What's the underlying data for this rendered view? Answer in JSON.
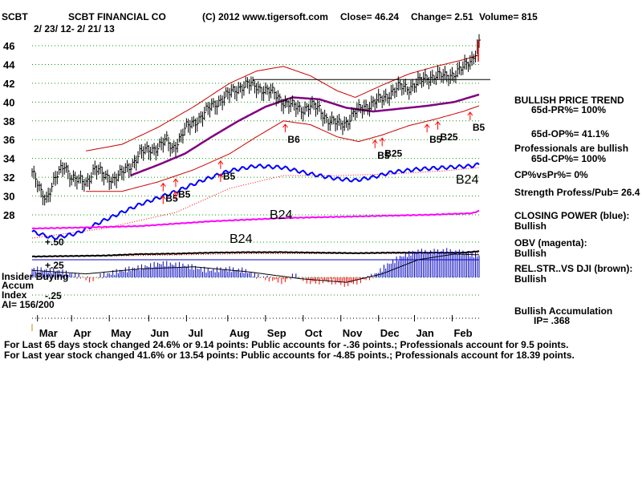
{
  "header": {
    "ticker": "SCBT",
    "company": "SCBT FINANCIAL CO",
    "copyright": "(C) 2012 www.tigersoft.com",
    "close": "Close=  46.24",
    "change": "Change= 2.51",
    "volume": "Volume= 815",
    "date_range": "2/ 23/ 12-  2/ 21/ 13"
  },
  "colors": {
    "price": "#000000",
    "bands": "#cc0000",
    "ma": "#800080",
    "closing_power": "#0000ff",
    "obv": "#ff00ff",
    "relstr": "#804000",
    "accum": "#0000c0",
    "signal": "#ff0000",
    "grid": "#00a000"
  },
  "chart_data": {
    "type": "line",
    "title": "SCBT FINANCIAL CO",
    "ylim": [
      28,
      46
    ],
    "y_ticks": [
      "46",
      "44",
      "42",
      "40",
      "38",
      "36",
      "34",
      "32",
      "30",
      "28"
    ],
    "months": [
      "Mar",
      "Apr",
      "May",
      "Jun",
      "Jul",
      "Aug",
      "Sep",
      "Oct",
      "Nov",
      "Dec",
      "Jan",
      "Feb"
    ],
    "month_index": [
      3,
      22,
      43,
      65,
      86,
      109,
      130,
      151,
      172,
      193,
      213,
      234
    ],
    "n_days": 250,
    "price_keys": [
      [
        0,
        32.5
      ],
      [
        5,
        30.2
      ],
      [
        8,
        29.8
      ],
      [
        12,
        31.5
      ],
      [
        18,
        33.2
      ],
      [
        22,
        32.0
      ],
      [
        26,
        31.5
      ],
      [
        30,
        31.3
      ],
      [
        35,
        33.0
      ],
      [
        40,
        32.0
      ],
      [
        45,
        31.8
      ],
      [
        50,
        32.3
      ],
      [
        55,
        33.2
      ],
      [
        60,
        34.5
      ],
      [
        65,
        34.8
      ],
      [
        70,
        35.2
      ],
      [
        75,
        35.8
      ],
      [
        78,
        35.0
      ],
      [
        82,
        36.0
      ],
      [
        86,
        37.2
      ],
      [
        90,
        37.8
      ],
      [
        95,
        38.5
      ],
      [
        100,
        39.5
      ],
      [
        105,
        40.2
      ],
      [
        110,
        40.8
      ],
      [
        115,
        41.5
      ],
      [
        120,
        41.8
      ],
      [
        125,
        41.6
      ],
      [
        130,
        41.2
      ],
      [
        135,
        40.8
      ],
      [
        140,
        40.0
      ],
      [
        145,
        39.5
      ],
      [
        150,
        39.2
      ],
      [
        155,
        39.5
      ],
      [
        160,
        39.2
      ],
      [
        165,
        38.0
      ],
      [
        170,
        37.6
      ],
      [
        175,
        37.8
      ],
      [
        180,
        38.8
      ],
      [
        185,
        39.5
      ],
      [
        190,
        39.8
      ],
      [
        195,
        40.3
      ],
      [
        200,
        41.0
      ],
      [
        205,
        41.5
      ],
      [
        210,
        41.5
      ],
      [
        215,
        42.0
      ],
      [
        220,
        42.5
      ],
      [
        225,
        42.8
      ],
      [
        230,
        42.6
      ],
      [
        235,
        43.0
      ],
      [
        240,
        43.5
      ],
      [
        245,
        44.5
      ],
      [
        249,
        46.24
      ]
    ],
    "ma65_keys": [
      [
        55,
        32.2
      ],
      [
        70,
        33.3
      ],
      [
        85,
        34.5
      ],
      [
        100,
        36.3
      ],
      [
        115,
        38.0
      ],
      [
        130,
        39.5
      ],
      [
        145,
        40.5
      ],
      [
        160,
        40.3
      ],
      [
        175,
        39.4
      ],
      [
        190,
        39.0
      ],
      [
        205,
        39.3
      ],
      [
        220,
        39.6
      ],
      [
        235,
        40.0
      ],
      [
        249,
        40.8
      ]
    ],
    "upper_band_keys": [
      [
        30,
        34.8
      ],
      [
        50,
        35.5
      ],
      [
        70,
        37.3
      ],
      [
        90,
        39.5
      ],
      [
        110,
        42.0
      ],
      [
        125,
        43.3
      ],
      [
        140,
        43.8
      ],
      [
        155,
        42.8
      ],
      [
        170,
        41.2
      ],
      [
        180,
        40.5
      ],
      [
        195,
        41.8
      ],
      [
        210,
        43.0
      ],
      [
        225,
        43.8
      ],
      [
        240,
        44.5
      ],
      [
        249,
        45.0
      ]
    ],
    "lower_band_keys": [
      [
        30,
        30.5
      ],
      [
        50,
        30.5
      ],
      [
        70,
        31.5
      ],
      [
        90,
        32.8
      ],
      [
        110,
        34.5
      ],
      [
        125,
        36.3
      ],
      [
        140,
        38.0
      ],
      [
        155,
        37.6
      ],
      [
        170,
        36.3
      ],
      [
        182,
        35.8
      ],
      [
        195,
        36.5
      ],
      [
        210,
        37.5
      ],
      [
        225,
        38.2
      ],
      [
        240,
        39.0
      ],
      [
        249,
        39.6
      ]
    ],
    "resistance_line": {
      "y": 42.4,
      "from": 123,
      "to": 249
    },
    "closing_power_keys": [
      [
        0,
        16
      ],
      [
        12,
        8
      ],
      [
        25,
        14
      ],
      [
        40,
        30
      ],
      [
        60,
        50
      ],
      [
        80,
        66
      ],
      [
        95,
        80
      ],
      [
        110,
        92
      ],
      [
        125,
        98
      ],
      [
        140,
        96
      ],
      [
        155,
        88
      ],
      [
        170,
        82
      ],
      [
        180,
        80
      ],
      [
        190,
        84
      ],
      [
        200,
        90
      ],
      [
        215,
        94
      ],
      [
        230,
        96
      ],
      [
        245,
        98
      ],
      [
        249,
        100
      ]
    ],
    "closing_power_ma_keys": [
      [
        0,
        8
      ],
      [
        40,
        20
      ],
      [
        80,
        40
      ],
      [
        110,
        70
      ],
      [
        140,
        86
      ],
      [
        170,
        86
      ],
      [
        200,
        88
      ],
      [
        230,
        92
      ],
      [
        249,
        96
      ]
    ],
    "obv_keys": [
      [
        0,
        30
      ],
      [
        25,
        32
      ],
      [
        60,
        36
      ],
      [
        100,
        48
      ],
      [
        140,
        56
      ],
      [
        180,
        60
      ],
      [
        220,
        64
      ],
      [
        245,
        68
      ],
      [
        249,
        74
      ]
    ],
    "relstr_keys": [
      [
        0,
        50
      ],
      [
        20,
        52
      ],
      [
        40,
        54
      ],
      [
        60,
        60
      ],
      [
        80,
        62
      ],
      [
        100,
        66
      ],
      [
        120,
        68
      ],
      [
        140,
        68
      ],
      [
        160,
        66
      ],
      [
        180,
        64
      ],
      [
        200,
        66
      ],
      [
        220,
        66
      ],
      [
        240,
        66
      ],
      [
        249,
        72
      ]
    ],
    "relstr_ma_keys": [
      [
        0,
        48
      ],
      [
        60,
        54
      ],
      [
        120,
        62
      ],
      [
        180,
        62
      ],
      [
        249,
        64
      ]
    ],
    "accum_keys": [
      [
        0,
        0.12
      ],
      [
        15,
        0.09
      ],
      [
        28,
        0.0
      ],
      [
        33,
        -0.04
      ],
      [
        38,
        0.02
      ],
      [
        50,
        0.1
      ],
      [
        62,
        0.15
      ],
      [
        72,
        0.2
      ],
      [
        85,
        0.17
      ],
      [
        98,
        0.1
      ],
      [
        108,
        0.12
      ],
      [
        118,
        0.1
      ],
      [
        125,
        0.02
      ],
      [
        132,
        -0.02
      ],
      [
        140,
        -0.06
      ],
      [
        146,
        0.03
      ],
      [
        155,
        -0.07
      ],
      [
        165,
        -0.05
      ],
      [
        175,
        -0.1
      ],
      [
        183,
        -0.05
      ],
      [
        190,
        0.02
      ],
      [
        198,
        0.18
      ],
      [
        206,
        0.3
      ],
      [
        214,
        0.37
      ],
      [
        222,
        0.36
      ],
      [
        230,
        0.38
      ],
      [
        240,
        0.35
      ],
      [
        249,
        0.31
      ]
    ],
    "accum_ma_keys": [
      [
        0,
        0.1
      ],
      [
        30,
        0.05
      ],
      [
        60,
        0.12
      ],
      [
        90,
        0.15
      ],
      [
        120,
        0.08
      ],
      [
        150,
        -0.02
      ],
      [
        175,
        -0.07
      ],
      [
        195,
        0.05
      ],
      [
        215,
        0.25
      ],
      [
        235,
        0.33
      ],
      [
        249,
        0.32
      ]
    ],
    "accum_labels": {
      "plus50": "+.50",
      "plus25": "+.25",
      "minus25": "-.25"
    },
    "signals": [
      {
        "i": 73,
        "label": "B5",
        "dir": "up"
      },
      {
        "i": 80,
        "label": "B5",
        "dir": "up"
      },
      {
        "i": 105,
        "label": "B5",
        "dir": "up"
      },
      {
        "i": 141,
        "label": "B6",
        "dir": "up"
      },
      {
        "i": 191,
        "label": "B5",
        "dir": "up"
      },
      {
        "i": 195,
        "label": "B25",
        "dir": "up"
      },
      {
        "i": 220,
        "label": "B5",
        "dir": "up"
      },
      {
        "i": 226,
        "label": "B25",
        "dir": "up"
      },
      {
        "i": 244,
        "label": "B5",
        "dir": "up"
      }
    ],
    "extra_text_labels": [
      {
        "text": "B24",
        "where": "cp-mid"
      },
      {
        "text": "B24",
        "where": "obv-mid"
      },
      {
        "text": "B24",
        "where": "cp-end"
      }
    ]
  },
  "right_panel": {
    "trend": "BULLISH PRICE TREND",
    "pr": "65d-PR%= 100%",
    "op": "65d-OP%= 41.1%",
    "pros": "Professionals are bullish",
    "cp": "65d-CP%= 100%",
    "cpvspr": "CP%vsPr%=  0%",
    "strength": "Strength Profess/Pub= 26.4",
    "closing_power_label": "CLOSING POWER (blue):",
    "closing_power_value": "Bullish",
    "obv_label": "OBV (magenta):",
    "obv_value": "Bullish",
    "relstr_label": "REL.STR..VS DJI (brown):",
    "relstr_value": "Bullish",
    "accum_label": "Bullish Accumulation",
    "ip": "IP=  .368"
  },
  "left_panel": {
    "insider": "Insider Buying",
    "accum": "Accum",
    "index": "Index",
    "ai": "AI= 156/200"
  },
  "footer": {
    "line1": "For Last 65 days stock changed  24.6% or  9.14 points:  Public accounts for -.36 points.;  Professionals account for  9.5 points.",
    "line2": "For Last year stock changed  41.6% or  13.54 points:  Public accounts for -4.85 points.;  Professionals account for  18.39 points."
  }
}
